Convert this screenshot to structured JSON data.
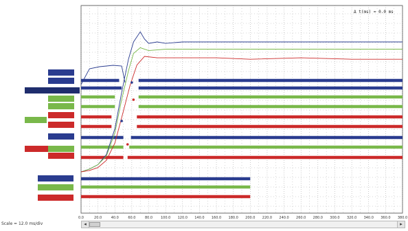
{
  "readout": "Δ t(ms) = 0.0 ms",
  "status": "Scale = 12.0 ms/div",
  "scroll": {
    "left_glyph": "◂",
    "right_glyph": "▸"
  },
  "x_axis": {
    "ticks": [
      "0.0",
      "20.0",
      "40.0",
      "60.0",
      "80.0",
      "100.0",
      "120.0",
      "140.0",
      "160.0",
      "180.0",
      "200.0",
      "220.0",
      "240.0",
      "260.0",
      "280.0",
      "300.0",
      "320.0",
      "340.0",
      "360.0",
      "380.0"
    ],
    "min": 0,
    "max": 380
  },
  "colors": {
    "blue": "#2a3c8f",
    "red": "#cc2a2a",
    "green": "#79b84a",
    "grid": "#9a9a9a",
    "background": "#ffffff"
  },
  "channels": [
    {
      "name": "",
      "color": "blue",
      "style": "blue"
    },
    {
      "name": "",
      "color": "blue",
      "style": "blue"
    },
    {
      "name": "",
      "color": "blue",
      "style": "dark"
    },
    {
      "name": "",
      "color": "green",
      "style": "green"
    },
    {
      "name": "",
      "color": "green",
      "style": "green"
    },
    {
      "name": "",
      "color": "red",
      "style": "red"
    },
    {
      "name": "",
      "color": "red",
      "style": "red"
    },
    {
      "name": "",
      "color": "green",
      "style": "green"
    },
    {
      "name": "",
      "color": "blue",
      "style": "blue"
    },
    {
      "name": "",
      "color": "red",
      "style": "red"
    },
    {
      "name": "",
      "color": "green",
      "style": "green"
    },
    {
      "name": "",
      "color": "red",
      "style": "red"
    },
    {
      "name": "",
      "color": "blue",
      "style": "blue"
    },
    {
      "name": "",
      "color": "green",
      "style": "green"
    },
    {
      "name": "",
      "color": "red",
      "style": "red"
    }
  ],
  "digital_traces": [
    {
      "color": "blue",
      "segments": [
        [
          0,
          45
        ],
        [
          68,
          380
        ]
      ]
    },
    {
      "color": "blue",
      "segments": [
        [
          0,
          48
        ],
        [
          68,
          380
        ]
      ]
    },
    {
      "color": "green",
      "segments": [
        [
          0,
          40
        ],
        [
          68,
          380
        ]
      ]
    },
    {
      "color": "green",
      "segments": [
        [
          0,
          40
        ],
        [
          68,
          380
        ]
      ]
    },
    {
      "color": "red",
      "segments": [
        [
          0,
          36
        ],
        [
          66,
          380
        ]
      ]
    },
    {
      "color": "red",
      "segments": [
        [
          0,
          36
        ],
        [
          66,
          380
        ]
      ]
    },
    {
      "color": "blue",
      "segments": [
        [
          0,
          50
        ],
        [
          59,
          380
        ]
      ]
    },
    {
      "color": "green",
      "segments": [
        [
          0,
          50
        ],
        [
          57,
          380
        ]
      ]
    },
    {
      "color": "red",
      "segments": [
        [
          0,
          50
        ],
        [
          55,
          380
        ]
      ]
    },
    {
      "color": "blue",
      "segments": [
        [
          0,
          200
        ]
      ]
    },
    {
      "color": "green",
      "segments": [
        [
          0,
          200
        ]
      ]
    },
    {
      "color": "red",
      "segments": [
        [
          0,
          200
        ]
      ]
    }
  ],
  "chart_data": {
    "type": "line",
    "x_min": 0,
    "x_max": 380,
    "series": [
      {
        "color": "blue",
        "x": [
          0,
          10,
          20,
          30,
          40,
          48,
          56,
          62,
          70,
          75,
          80,
          90,
          100,
          120,
          160,
          200,
          240,
          280,
          320,
          380
        ],
        "y": [
          0.0,
          0.02,
          0.05,
          0.12,
          0.3,
          0.55,
          0.78,
          0.9,
          0.97,
          0.92,
          0.89,
          0.9,
          0.89,
          0.9,
          0.9,
          0.9,
          0.9,
          0.9,
          0.9,
          0.9
        ]
      },
      {
        "color": "green",
        "x": [
          0,
          10,
          20,
          30,
          40,
          48,
          56,
          62,
          70,
          80,
          100,
          150,
          200,
          250,
          300,
          380
        ],
        "y": [
          0.0,
          0.02,
          0.05,
          0.11,
          0.27,
          0.5,
          0.7,
          0.82,
          0.86,
          0.84,
          0.85,
          0.85,
          0.85,
          0.85,
          0.85,
          0.85
        ]
      },
      {
        "color": "red",
        "x": [
          0,
          10,
          20,
          30,
          40,
          50,
          58,
          66,
          75,
          90,
          120,
          160,
          200,
          260,
          320,
          380
        ],
        "y": [
          0.0,
          0.01,
          0.03,
          0.08,
          0.2,
          0.42,
          0.6,
          0.74,
          0.8,
          0.79,
          0.79,
          0.79,
          0.78,
          0.79,
          0.78,
          0.78
        ]
      }
    ]
  }
}
